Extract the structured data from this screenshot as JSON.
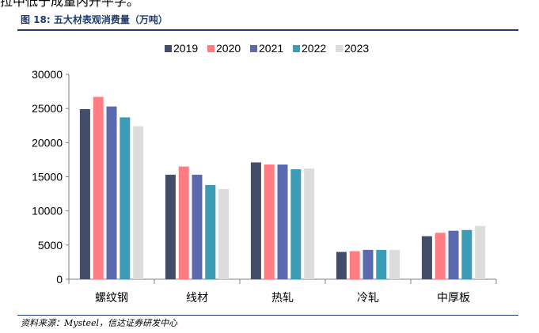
{
  "page": {
    "top_fragment": "拉中低于成量内开平字。",
    "figure_title": "图 18:  五大材表观消费量（万吨）",
    "source": "资料来源：Mysteel，信达证券研发中心"
  },
  "chart_data": {
    "type": "bar",
    "title": "五大材表观消费量（万吨）",
    "xlabel": "",
    "ylabel": "",
    "ylim": [
      0,
      30000
    ],
    "yticks": [
      0,
      5000,
      10000,
      15000,
      20000,
      25000,
      30000
    ],
    "grid": false,
    "legend_position": "top",
    "categories": [
      "螺纹钢",
      "线材",
      "热轧",
      "冷轧",
      "中厚板"
    ],
    "series": [
      {
        "name": "2019",
        "color": "#424C6B",
        "values": [
          24900,
          15300,
          17100,
          4000,
          6300
        ]
      },
      {
        "name": "2020",
        "color": "#FF7C80",
        "values": [
          26700,
          16500,
          16800,
          4100,
          6800
        ]
      },
      {
        "name": "2021",
        "color": "#5B6AAE",
        "values": [
          25300,
          15300,
          16800,
          4300,
          7100
        ]
      },
      {
        "name": "2022",
        "color": "#3C9BB5",
        "values": [
          23700,
          13800,
          16100,
          4300,
          7200
        ]
      },
      {
        "name": "2023",
        "color": "#DCDCDC",
        "values": [
          22400,
          13200,
          16200,
          4300,
          7800
        ]
      }
    ]
  }
}
